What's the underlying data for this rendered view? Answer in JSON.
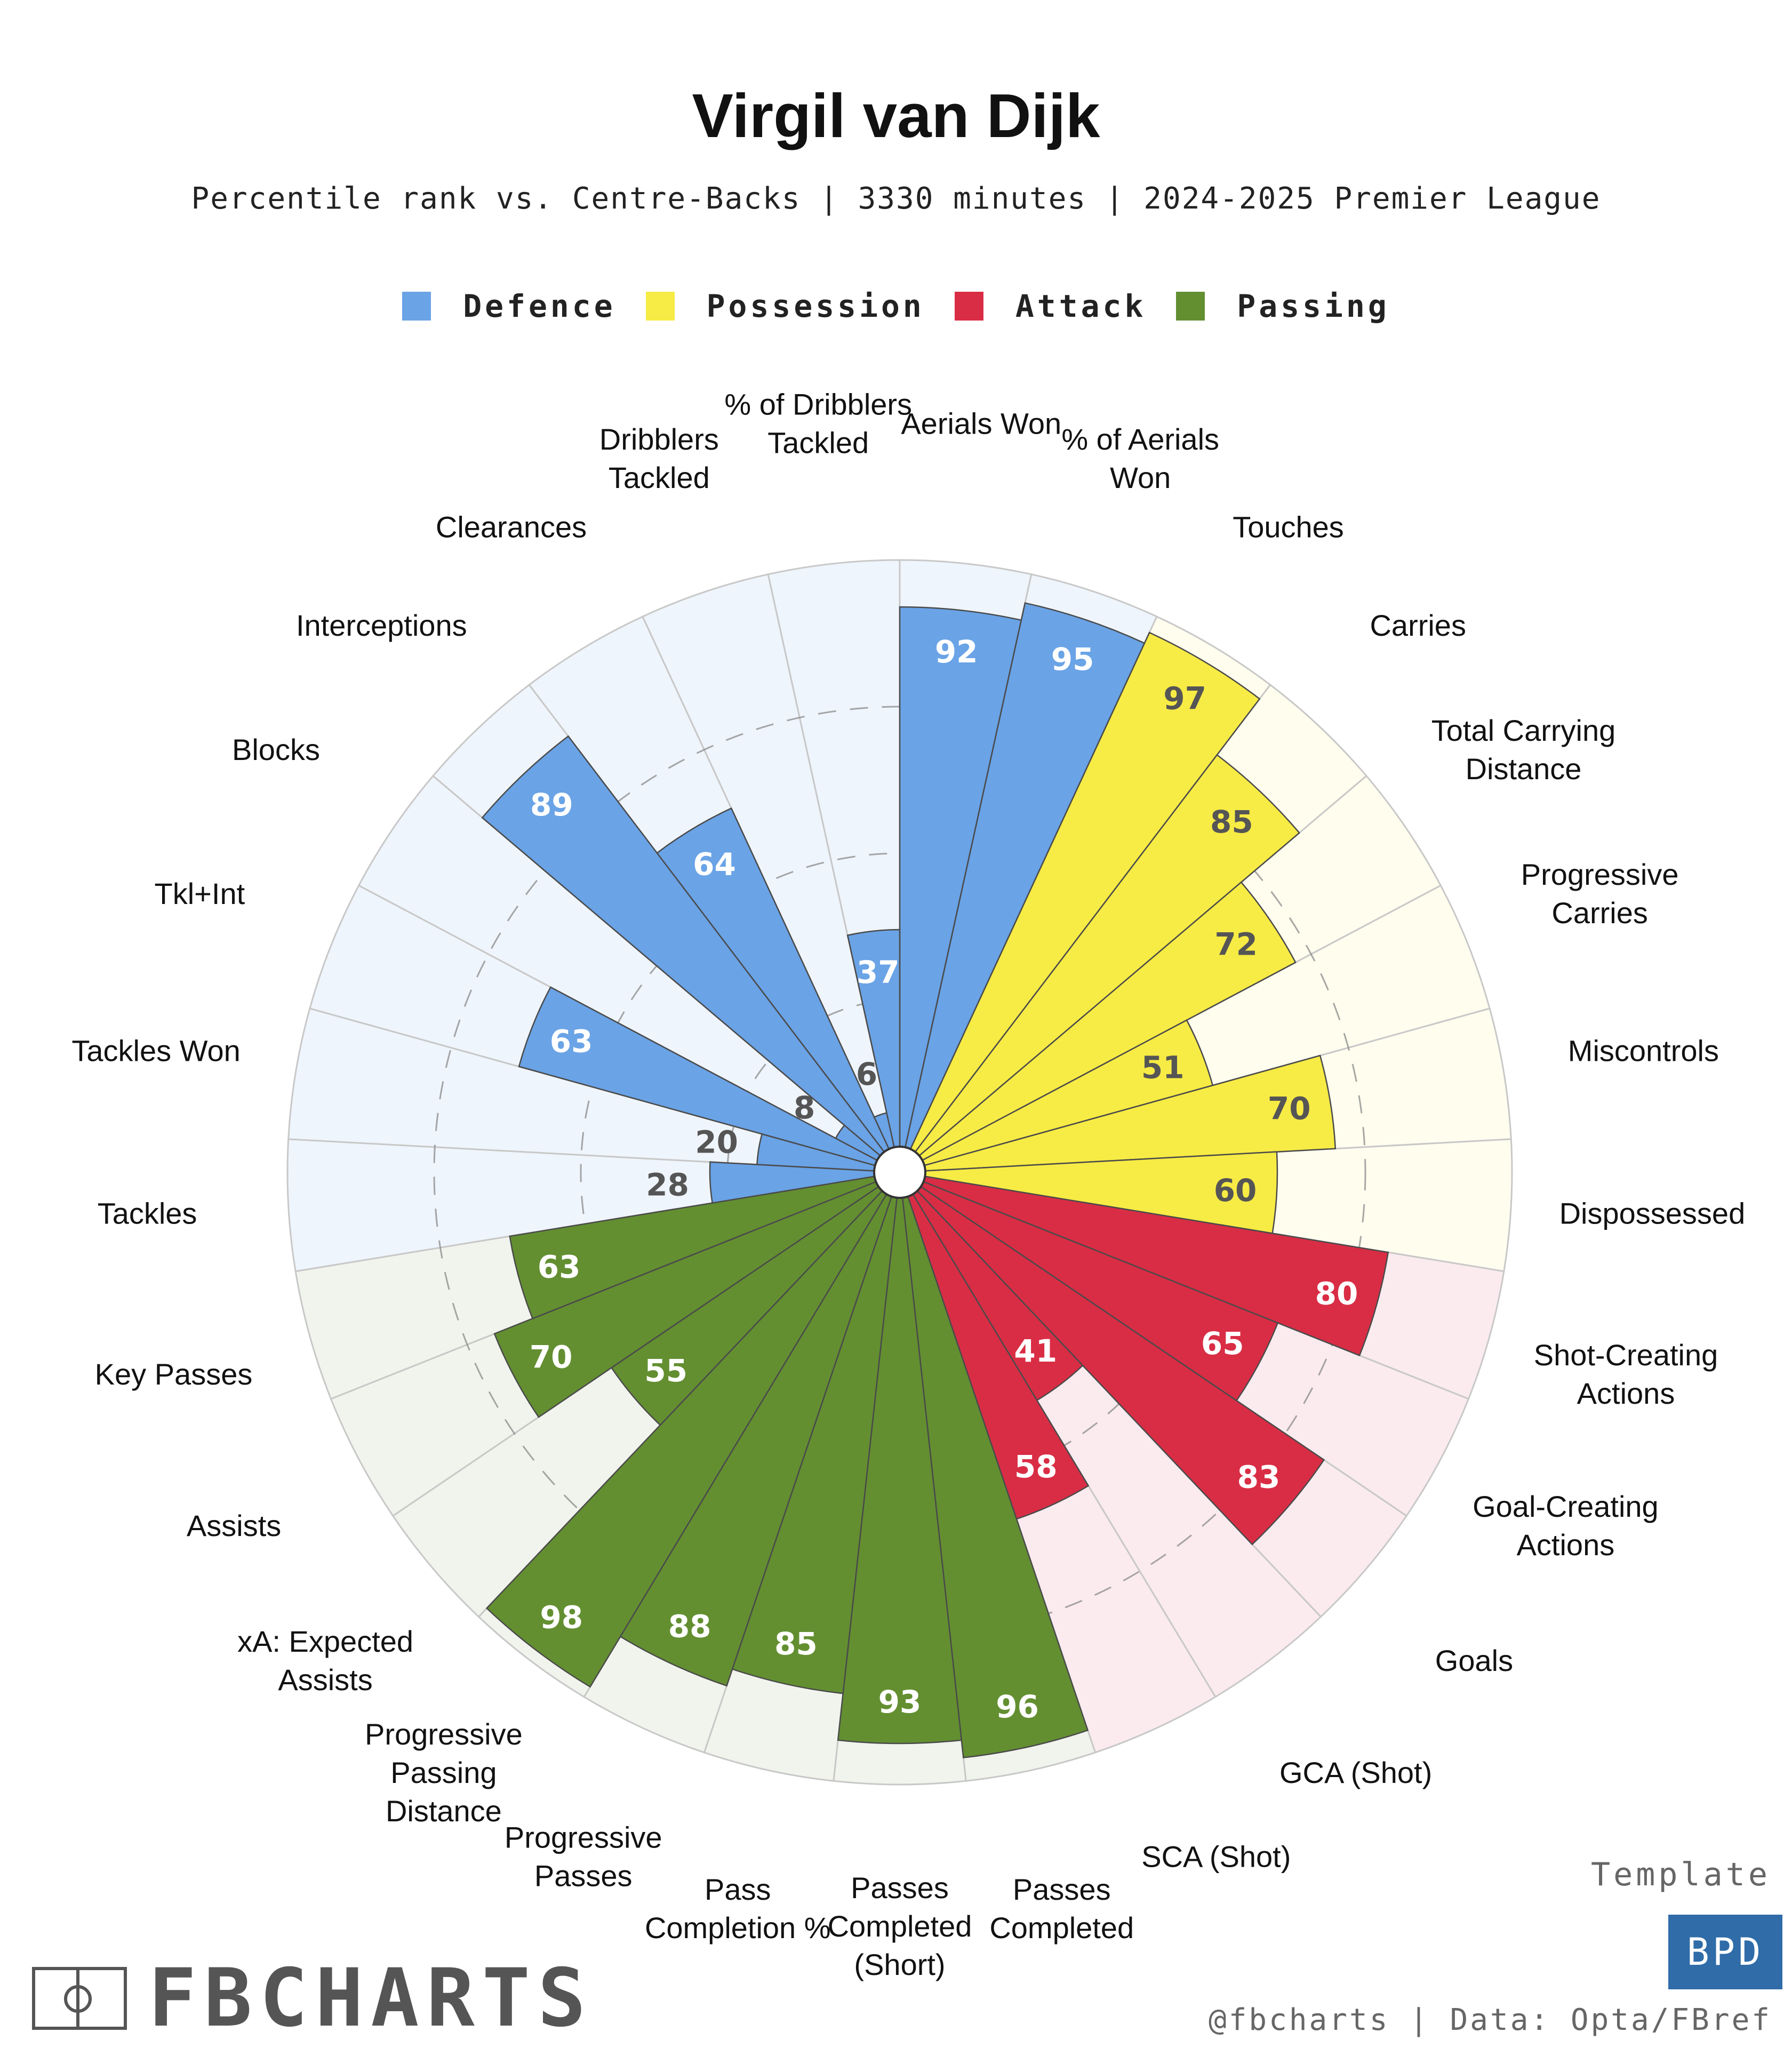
{
  "title": "Virgil van Dijk",
  "subtitle": "Percentile rank vs. Centre-Backs | 3330 minutes | 2024-2025 Premier League",
  "legend": [
    {
      "label": "Defence",
      "color": "#6aa3e6"
    },
    {
      "label": "Possession",
      "color": "#f7eb45"
    },
    {
      "label": "Attack",
      "color": "#d92d45"
    },
    {
      "label": "Passing",
      "color": "#638f31"
    }
  ],
  "colors": {
    "Defence": {
      "fill": "#6aa3e6",
      "bg": "#eff5fc"
    },
    "Possession": {
      "fill": "#f7eb45",
      "bg": "#fefdee"
    },
    "Attack": {
      "fill": "#d92d45",
      "bg": "#fbebee"
    },
    "Passing": {
      "fill": "#638f31",
      "bg": "#f1f4ec"
    },
    "label_light": "#ffffff",
    "label_dark": "#555555"
  },
  "chart_data": {
    "type": "radial_bar",
    "title": "Virgil van Dijk",
    "subtitle": "Percentile rank vs. Centre-Backs | 3330 minutes | 2024-2025 Premier League",
    "value_range": [
      0,
      100
    ],
    "gridlines": [
      25,
      50,
      75
    ],
    "series": [
      {
        "stat": "Aerials Won",
        "label_lines": [
          "Aerials Won"
        ],
        "category": "Defence",
        "value": 92
      },
      {
        "stat": "% of Aerials Won",
        "label_lines": [
          "% of Aerials",
          "Won"
        ],
        "category": "Defence",
        "value": 95
      },
      {
        "stat": "Touches",
        "label_lines": [
          "Touches"
        ],
        "category": "Possession",
        "value": 97
      },
      {
        "stat": "Carries",
        "label_lines": [
          "Carries"
        ],
        "category": "Possession",
        "value": 85
      },
      {
        "stat": "Total Carrying Distance",
        "label_lines": [
          "Total Carrying",
          "Distance"
        ],
        "category": "Possession",
        "value": 72
      },
      {
        "stat": "Progressive Carries",
        "label_lines": [
          "Progressive",
          "Carries"
        ],
        "category": "Possession",
        "value": 51
      },
      {
        "stat": "Miscontrols",
        "label_lines": [
          "Miscontrols"
        ],
        "category": "Possession",
        "value": 70
      },
      {
        "stat": "Dispossessed",
        "label_lines": [
          "Dispossessed"
        ],
        "category": "Possession",
        "value": 60
      },
      {
        "stat": "Shot-Creating Actions",
        "label_lines": [
          "Shot-Creating",
          "Actions"
        ],
        "category": "Attack",
        "value": 80
      },
      {
        "stat": "Goal-Creating Actions",
        "label_lines": [
          "Goal-Creating",
          "Actions"
        ],
        "category": "Attack",
        "value": 65
      },
      {
        "stat": "Goals",
        "label_lines": [
          "Goals"
        ],
        "category": "Attack",
        "value": 83
      },
      {
        "stat": "GCA (Shot)",
        "label_lines": [
          "GCA (Shot)"
        ],
        "category": "Attack",
        "value": 41
      },
      {
        "stat": "SCA (Shot)",
        "label_lines": [
          "SCA (Shot)"
        ],
        "category": "Attack",
        "value": 58
      },
      {
        "stat": "Passes Completed",
        "label_lines": [
          "Passes",
          "Completed"
        ],
        "category": "Passing",
        "value": 96
      },
      {
        "stat": "Passes Completed (Short)",
        "label_lines": [
          "Passes",
          "Completed",
          "(Short)"
        ],
        "category": "Passing",
        "value": 93
      },
      {
        "stat": "Pass Completion %",
        "label_lines": [
          "Pass",
          "Completion %"
        ],
        "category": "Passing",
        "value": 85
      },
      {
        "stat": "Progressive Passes",
        "label_lines": [
          "Progressive",
          "Passes"
        ],
        "category": "Passing",
        "value": 88
      },
      {
        "stat": "Progressive Passing Distance",
        "label_lines": [
          "Progressive",
          "Passing",
          "Distance"
        ],
        "category": "Passing",
        "value": 98
      },
      {
        "stat": "xA: Expected Assists",
        "label_lines": [
          "xA: Expected",
          "Assists"
        ],
        "category": "Passing",
        "value": 55
      },
      {
        "stat": "Assists",
        "label_lines": [
          "Assists"
        ],
        "category": "Passing",
        "value": 70
      },
      {
        "stat": "Key Passes",
        "label_lines": [
          "Key Passes"
        ],
        "category": "Passing",
        "value": 63
      },
      {
        "stat": "Tackles",
        "label_lines": [
          "Tackles"
        ],
        "category": "Defence",
        "value": 28
      },
      {
        "stat": "Tackles Won",
        "label_lines": [
          "Tackles Won"
        ],
        "category": "Defence",
        "value": 20
      },
      {
        "stat": "Tkl+Int",
        "label_lines": [
          "Tkl+Int"
        ],
        "category": "Defence",
        "value": 63
      },
      {
        "stat": "Blocks",
        "label_lines": [
          "Blocks"
        ],
        "category": "Defence",
        "value": 8
      },
      {
        "stat": "Interceptions",
        "label_lines": [
          "Interceptions"
        ],
        "category": "Defence",
        "value": 89
      },
      {
        "stat": "Clearances",
        "label_lines": [
          "Clearances"
        ],
        "category": "Defence",
        "value": 64
      },
      {
        "stat": "Dribblers Tackled",
        "label_lines": [
          "Dribblers",
          "Tackled"
        ],
        "category": "Defence",
        "value": 6
      },
      {
        "stat": "% of Dribblers Tackled",
        "label_lines": [
          "% of Dribblers",
          "Tackled"
        ],
        "category": "Defence",
        "value": 37
      }
    ]
  },
  "footer": {
    "template_label": "Template",
    "template_badge": "BPD",
    "credit": "@fbcharts | Data: Opta/FBref",
    "brand": "FBCHARTS"
  }
}
